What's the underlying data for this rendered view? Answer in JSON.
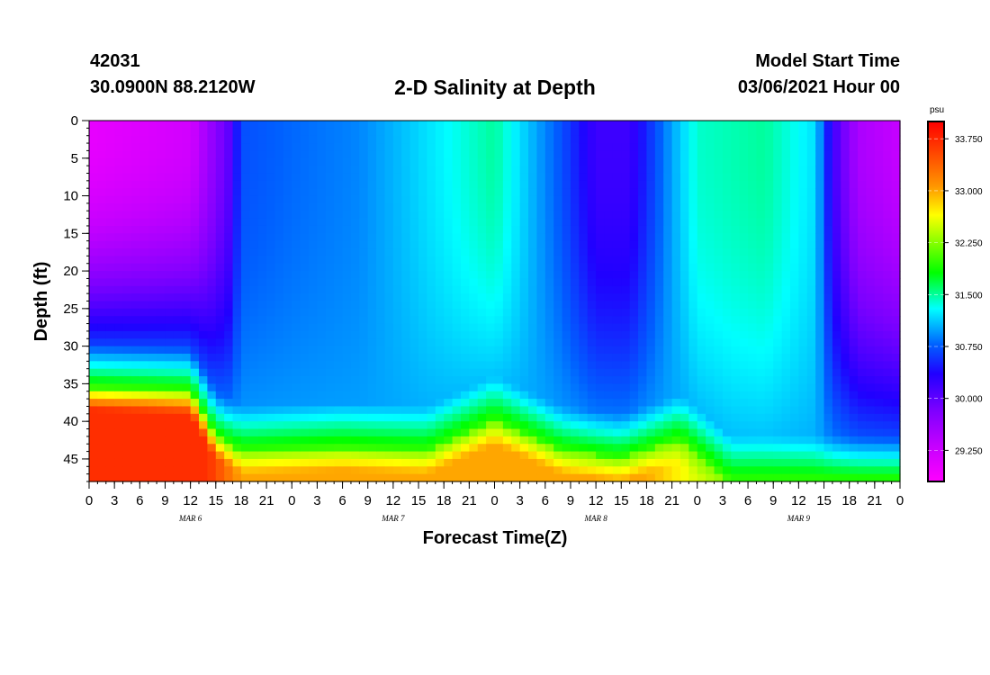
{
  "header": {
    "station_id": "42031",
    "coordinates": "30.0900N 88.2120W",
    "model_start_label": "Model Start Time",
    "model_start_value": "03/06/2021 Hour 00"
  },
  "chart_data": {
    "type": "heatmap",
    "title": "2-D Salinity at Depth",
    "xlabel": "Forecast Time(Z)",
    "ylabel": "Depth (ft)",
    "x_range_hours": [
      0,
      96
    ],
    "x_tick_step_hours": 3,
    "x_tick_labels": [
      "0",
      "3",
      "6",
      "9",
      "12",
      "15",
      "18",
      "21",
      "0",
      "3",
      "6",
      "9",
      "12",
      "15",
      "18",
      "21",
      "0",
      "3",
      "6",
      "9",
      "12",
      "15",
      "18",
      "21",
      "0",
      "3",
      "6",
      "9",
      "12",
      "15",
      "18",
      "21",
      "0"
    ],
    "date_labels": [
      {
        "label": "MAR  6",
        "hour": 12
      },
      {
        "label": "MAR  7",
        "hour": 36
      },
      {
        "label": "MAR  8",
        "hour": 60
      },
      {
        "label": "MAR  9",
        "hour": 84
      }
    ],
    "y_range_ft": [
      0,
      48
    ],
    "y_ticks": [
      0,
      5,
      10,
      15,
      20,
      25,
      30,
      35,
      40,
      45
    ],
    "y_minor_step": 1,
    "colorbar": {
      "unit": "psu",
      "range": [
        28.8,
        34.0
      ],
      "tick_values": [
        33.75,
        33.0,
        32.25,
        31.5,
        30.75,
        30.0,
        29.25
      ],
      "tick_labels": [
        "33.750",
        "33.000",
        "32.250",
        "31.500",
        "30.750",
        "30.000",
        "29.250"
      ]
    },
    "surface_salinity_psu": [
      {
        "hour": 0,
        "value": 29.0
      },
      {
        "hour": 12,
        "value": 29.2
      },
      {
        "hour": 16.5,
        "value": 30.0
      },
      {
        "hour": 18,
        "value": 30.7
      },
      {
        "hour": 24,
        "value": 30.8
      },
      {
        "hour": 32,
        "value": 30.9
      },
      {
        "hour": 40,
        "value": 31.2
      },
      {
        "hour": 48,
        "value": 31.5
      },
      {
        "hour": 56,
        "value": 30.7
      },
      {
        "hour": 60,
        "value": 30.2
      },
      {
        "hour": 64,
        "value": 30.2
      },
      {
        "hour": 69,
        "value": 31.0
      },
      {
        "hour": 72,
        "value": 31.4
      },
      {
        "hour": 80,
        "value": 31.5
      },
      {
        "hour": 86,
        "value": 31.2
      },
      {
        "hour": 88,
        "value": 30.2
      },
      {
        "hour": 91,
        "value": 29.5
      },
      {
        "hour": 96,
        "value": 29.3
      }
    ],
    "bottom_layer": {
      "top_depth_ft": [
        {
          "hour": 0,
          "value": 35.5
        },
        {
          "hour": 12,
          "value": 36
        },
        {
          "hour": 15,
          "value": 42
        },
        {
          "hour": 18,
          "value": 44
        },
        {
          "hour": 30,
          "value": 43.5
        },
        {
          "hour": 40,
          "value": 44
        },
        {
          "hour": 48,
          "value": 40
        },
        {
          "hour": 56,
          "value": 44
        },
        {
          "hour": 63,
          "value": 45
        },
        {
          "hour": 70,
          "value": 42.5
        },
        {
          "hour": 76,
          "value": 48
        },
        {
          "hour": 96,
          "value": 48
        }
      ],
      "bottom_salinity_psu": [
        {
          "hour": 0,
          "value": 33.7
        },
        {
          "hour": 14,
          "value": 33.7
        },
        {
          "hour": 18,
          "value": 33.0
        },
        {
          "hour": 48,
          "value": 33.0
        },
        {
          "hour": 66,
          "value": 33.0
        },
        {
          "hour": 72,
          "value": 32.5
        },
        {
          "hour": 96,
          "value": 32.5
        }
      ]
    }
  }
}
